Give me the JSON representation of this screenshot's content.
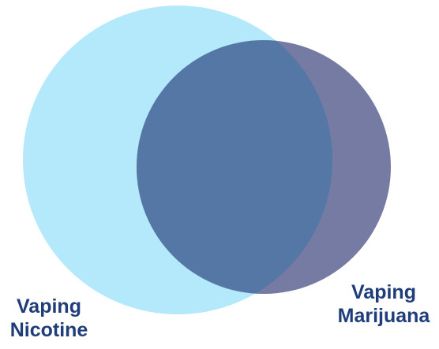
{
  "diagram": {
    "type": "venn",
    "sets": [
      {
        "id": "nicotine",
        "label_lines": [
          "Vaping",
          "Nicotine"
        ],
        "color": "#b3e9fb"
      },
      {
        "id": "marijuana",
        "label_lines": [
          "Vaping",
          "Marijuana"
        ],
        "color": "#757ba2"
      }
    ],
    "overlap_color": "#5577a6",
    "label_color": "#1f3d7a"
  }
}
